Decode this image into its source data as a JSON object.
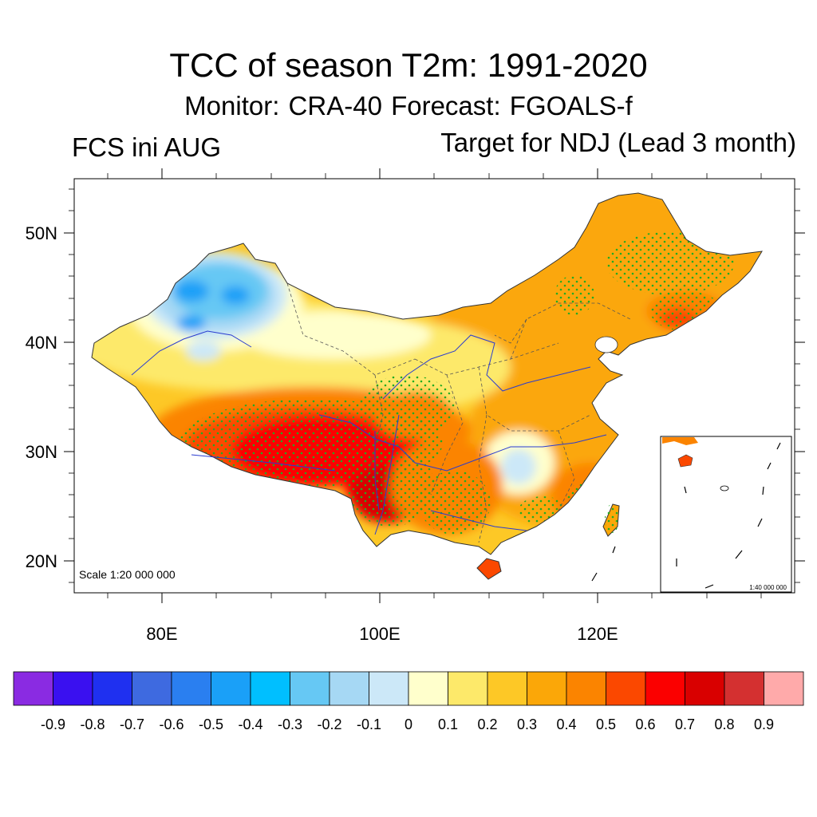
{
  "title": "TCC of season T2m: 1991-2020",
  "subtitle": "Monitor: CRA-40   Forecast: FGOALS-f",
  "left_label": "FCS ini AUG",
  "right_label": "Target for NDJ (Lead 3 month)",
  "scale_main": "Scale 1:20 000 000",
  "scale_inset": "1:40 000 000",
  "axes": {
    "lat_labels": [
      "50N",
      "40N",
      "30N",
      "20N"
    ],
    "lon_labels": [
      "80E",
      "100E",
      "120E"
    ]
  },
  "colorbar": {
    "labels": [
      "-0.9",
      "-0.8",
      "-0.7",
      "-0.6",
      "-0.5",
      "-0.4",
      "-0.3",
      "-0.2",
      "-0.1",
      "0",
      "0.1",
      "0.2",
      "0.3",
      "0.4",
      "0.5",
      "0.6",
      "0.7",
      "0.8",
      "0.9"
    ],
    "colors": [
      "#8a2be2",
      "#3a10f0",
      "#1f30f0",
      "#3e6ae0",
      "#2a7ff0",
      "#1aa0f8",
      "#00bfff",
      "#66c8f4",
      "#a6d8f4",
      "#cce8f8",
      "#ffffcc",
      "#fde96a",
      "#fdc826",
      "#fba708",
      "#fb8400",
      "#fb4800",
      "#fb0000",
      "#d90000",
      "#d43030",
      "#ffaaaa"
    ]
  },
  "chart_data": {
    "type": "heatmap",
    "title": "TCC of season T2m: 1991-2020",
    "x_axis": {
      "ticks": [
        "80E",
        "100E",
        "120E"
      ],
      "range": [
        72,
        138
      ]
    },
    "y_axis": {
      "ticks": [
        "20N",
        "30N",
        "40N",
        "50N"
      ],
      "range": [
        17,
        55
      ]
    },
    "colorbar_levels": [
      -0.9,
      -0.8,
      -0.7,
      -0.6,
      -0.5,
      -0.4,
      -0.3,
      -0.2,
      -0.1,
      0,
      0.1,
      0.2,
      0.3,
      0.4,
      0.5,
      0.6,
      0.7,
      0.8,
      0.9
    ],
    "stippling": "green dots mark significant correlation"
  }
}
